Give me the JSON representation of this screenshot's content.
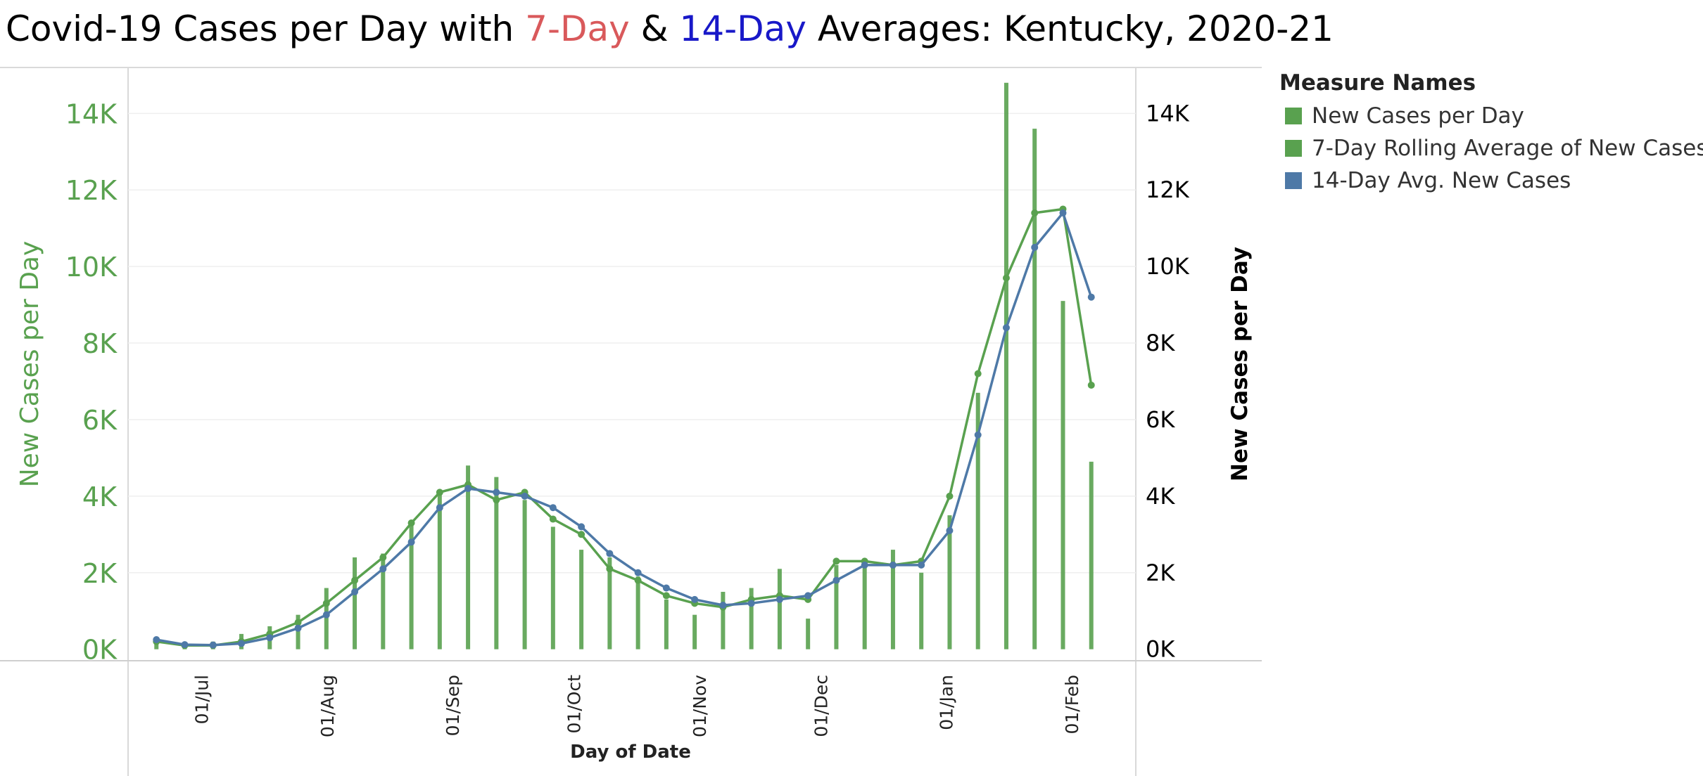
{
  "title": {
    "part1": "Covid-19 Cases per Day with ",
    "part2": "7-Day",
    "part3": " & ",
    "part4": "14-Day",
    "part5": " Averages: Kentucky,  2020-21",
    "color_7day": "#d9595b",
    "color_14day": "#1818c8"
  },
  "legend": {
    "title": "Measure Names",
    "items": [
      {
        "label": "New Cases per Day",
        "color": "#59a14f"
      },
      {
        "label": "7-Day Rolling  Average of New Cases",
        "color": "#59a14f"
      },
      {
        "label": "14-Day Avg. New Cases",
        "color": "#4e79a7"
      }
    ]
  },
  "chart_data": {
    "type": "bar+line",
    "x_axis": {
      "label": "Day of Date",
      "ticks": [
        "01/Jul",
        "01/Aug",
        "01/Sep",
        "01/Oct",
        "01/Nov",
        "01/Dec",
        "01/Jan",
        "01/Feb"
      ],
      "tick_dates": [
        "2020-07-01",
        "2020-08-01",
        "2020-09-01",
        "2020-10-01",
        "2020-11-01",
        "2020-12-01",
        "2021-01-01",
        "2021-02-01"
      ]
    },
    "y_axis_left": {
      "label": "New Cases per Day",
      "ticks": [
        "0K",
        "2K",
        "4K",
        "6K",
        "8K",
        "10K",
        "12K",
        "14K"
      ],
      "tick_values": [
        0,
        2000,
        4000,
        6000,
        8000,
        10000,
        12000,
        14000
      ],
      "color": "#59a14f"
    },
    "y_axis_right": {
      "label": "New Cases per Day",
      "ticks": [
        "0K",
        "2K",
        "4K",
        "6K",
        "8K",
        "10K",
        "12K",
        "14K"
      ],
      "tick_values": [
        0,
        2000,
        4000,
        6000,
        8000,
        10000,
        12000,
        14000
      ],
      "color": "#000000"
    },
    "ylim": [
      -300,
      15200
    ],
    "grid": true,
    "legend_position": "right",
    "dates": [
      "2020-06-20",
      "2020-06-27",
      "2020-07-04",
      "2020-07-11",
      "2020-07-18",
      "2020-07-25",
      "2020-08-01",
      "2020-08-08",
      "2020-08-15",
      "2020-08-22",
      "2020-08-29",
      "2020-09-05",
      "2020-09-12",
      "2020-09-19",
      "2020-09-26",
      "2020-10-03",
      "2020-10-10",
      "2020-10-17",
      "2020-10-24",
      "2020-10-31",
      "2020-11-07",
      "2020-11-14",
      "2020-11-21",
      "2020-11-28",
      "2020-12-05",
      "2020-12-12",
      "2020-12-19",
      "2020-12-26",
      "2021-01-02",
      "2021-01-09",
      "2021-01-16",
      "2021-01-23",
      "2021-01-30",
      "2021-02-06"
    ],
    "series": [
      {
        "name": "New Cases per Day",
        "kind": "bar",
        "color": "#59a14f",
        "values": [
          300,
          100,
          200,
          400,
          600,
          900,
          1600,
          2400,
          2500,
          3300,
          4100,
          4800,
          4500,
          3900,
          3200,
          2600,
          2400,
          1900,
          1300,
          900,
          1500,
          1600,
          2100,
          800,
          2200,
          2300,
          2600,
          2000,
          3500,
          6700,
          14800,
          13600,
          9100,
          4900
        ]
      },
      {
        "name": "7-Day Rolling  Average of New Cases",
        "kind": "line",
        "color": "#59a14f",
        "values": [
          200,
          100,
          100,
          200,
          400,
          700,
          1200,
          1800,
          2400,
          3300,
          4100,
          4300,
          3900,
          4100,
          3400,
          3000,
          2100,
          1800,
          1400,
          1200,
          1100,
          1300,
          1400,
          1300,
          2300,
          2300,
          2200,
          2300,
          4000,
          7200,
          9700,
          11400,
          11500,
          6900
        ]
      },
      {
        "name": "14-Day Avg. New Cases",
        "kind": "line",
        "color": "#4e79a7",
        "values": [
          250,
          120,
          110,
          150,
          300,
          550,
          900,
          1500,
          2100,
          2800,
          3700,
          4200,
          4100,
          4000,
          3700,
          3200,
          2500,
          2000,
          1600,
          1300,
          1150,
          1200,
          1300,
          1400,
          1800,
          2200,
          2200,
          2200,
          3100,
          5600,
          8400,
          10500,
          11400,
          9200
        ]
      }
    ]
  }
}
